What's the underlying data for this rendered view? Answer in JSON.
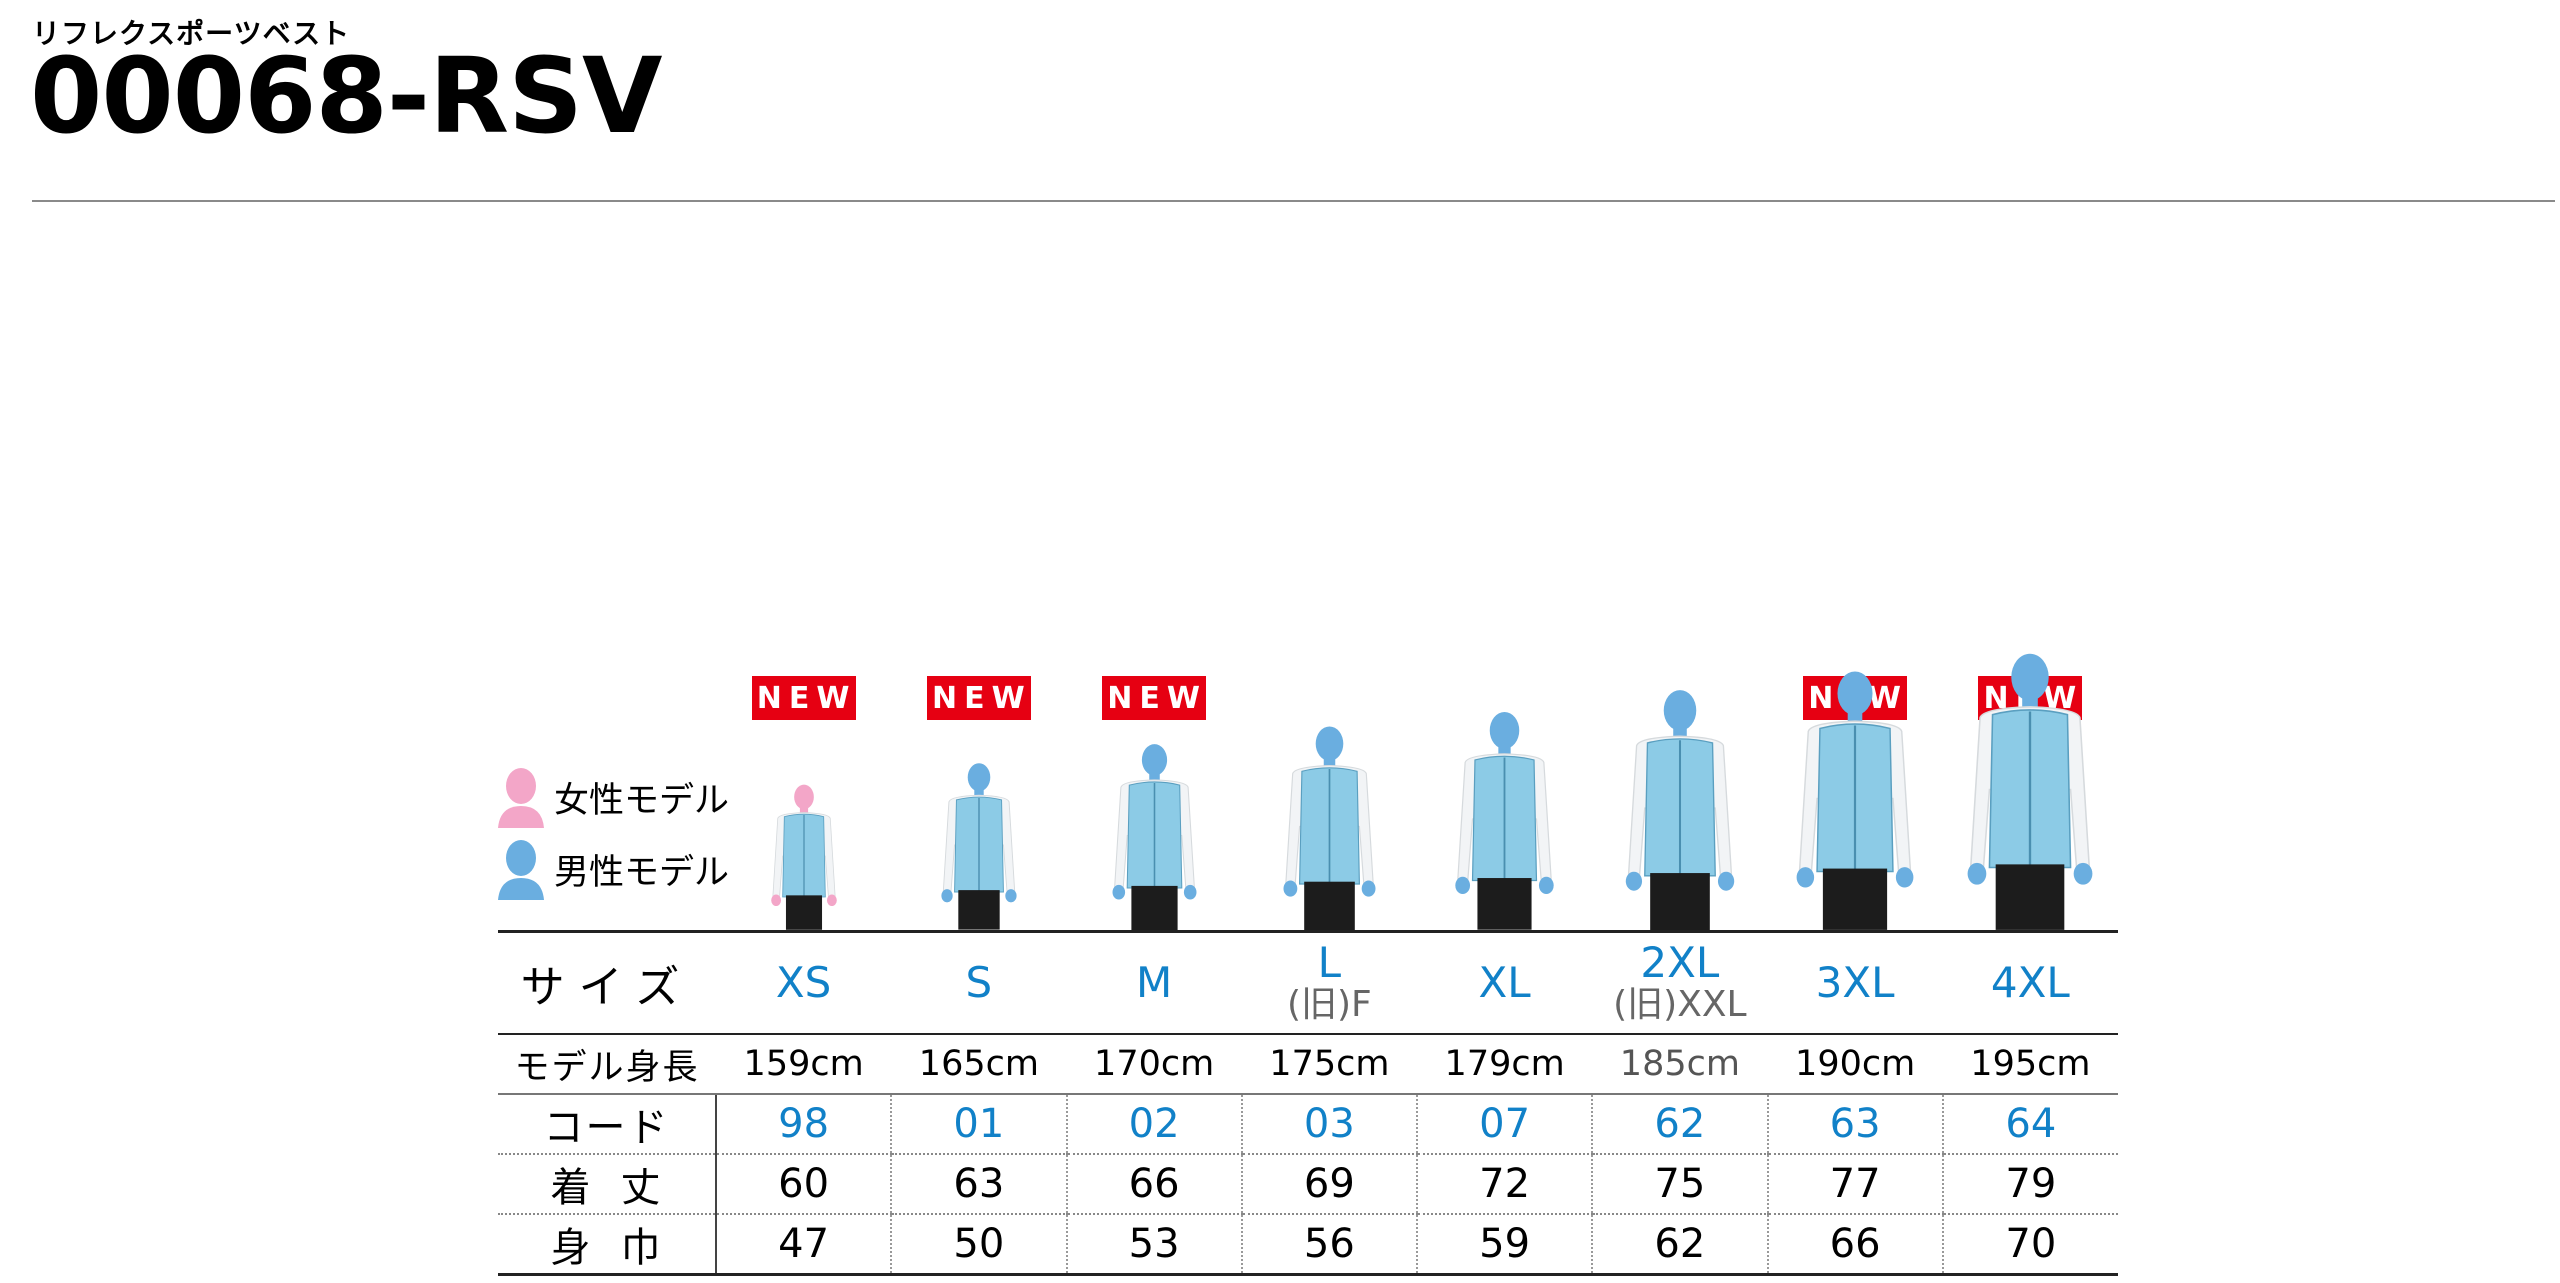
{
  "header": {
    "subtitle": "リフレクスポーツベスト",
    "title": "00068-RSV"
  },
  "legend": {
    "female": "女性モデル",
    "male": "男性モデル",
    "female_color": "#f3a6c8",
    "male_color": "#6aaee0"
  },
  "badge_label": "NEW",
  "colors": {
    "accent_blue": "#1181c8",
    "badge_red": "#e60012",
    "vest": "#8ccbe6"
  },
  "table": {
    "labels": {
      "size": "サイズ",
      "model_height": "モデル身長",
      "code": "コード",
      "length": "着丈",
      "width": "身巾"
    },
    "columns": [
      {
        "size": "XS",
        "old": "",
        "new": true,
        "height": "159cm",
        "code": "98",
        "length": "60",
        "width": "47",
        "model": "female"
      },
      {
        "size": "S",
        "old": "",
        "new": true,
        "height": "165cm",
        "code": "01",
        "length": "63",
        "width": "50",
        "model": "male"
      },
      {
        "size": "M",
        "old": "",
        "new": true,
        "height": "170cm",
        "code": "02",
        "length": "66",
        "width": "53",
        "model": "male"
      },
      {
        "size": "L",
        "old": "(旧)F",
        "new": false,
        "height": "175cm",
        "code": "03",
        "length": "69",
        "width": "56",
        "model": "male"
      },
      {
        "size": "XL",
        "old": "",
        "new": false,
        "height": "179cm",
        "code": "07",
        "length": "72",
        "width": "59",
        "model": "male"
      },
      {
        "size": "2XL",
        "old": "(旧)XXL",
        "new": false,
        "height": "185cm",
        "code": "62",
        "length": "75",
        "width": "62",
        "model": "male"
      },
      {
        "size": "3XL",
        "old": "",
        "new": true,
        "height": "190cm",
        "code": "63",
        "length": "77",
        "width": "66",
        "model": "male"
      },
      {
        "size": "4XL",
        "old": "",
        "new": true,
        "height": "195cm",
        "code": "64",
        "length": "79",
        "width": "70",
        "model": "male"
      }
    ]
  }
}
